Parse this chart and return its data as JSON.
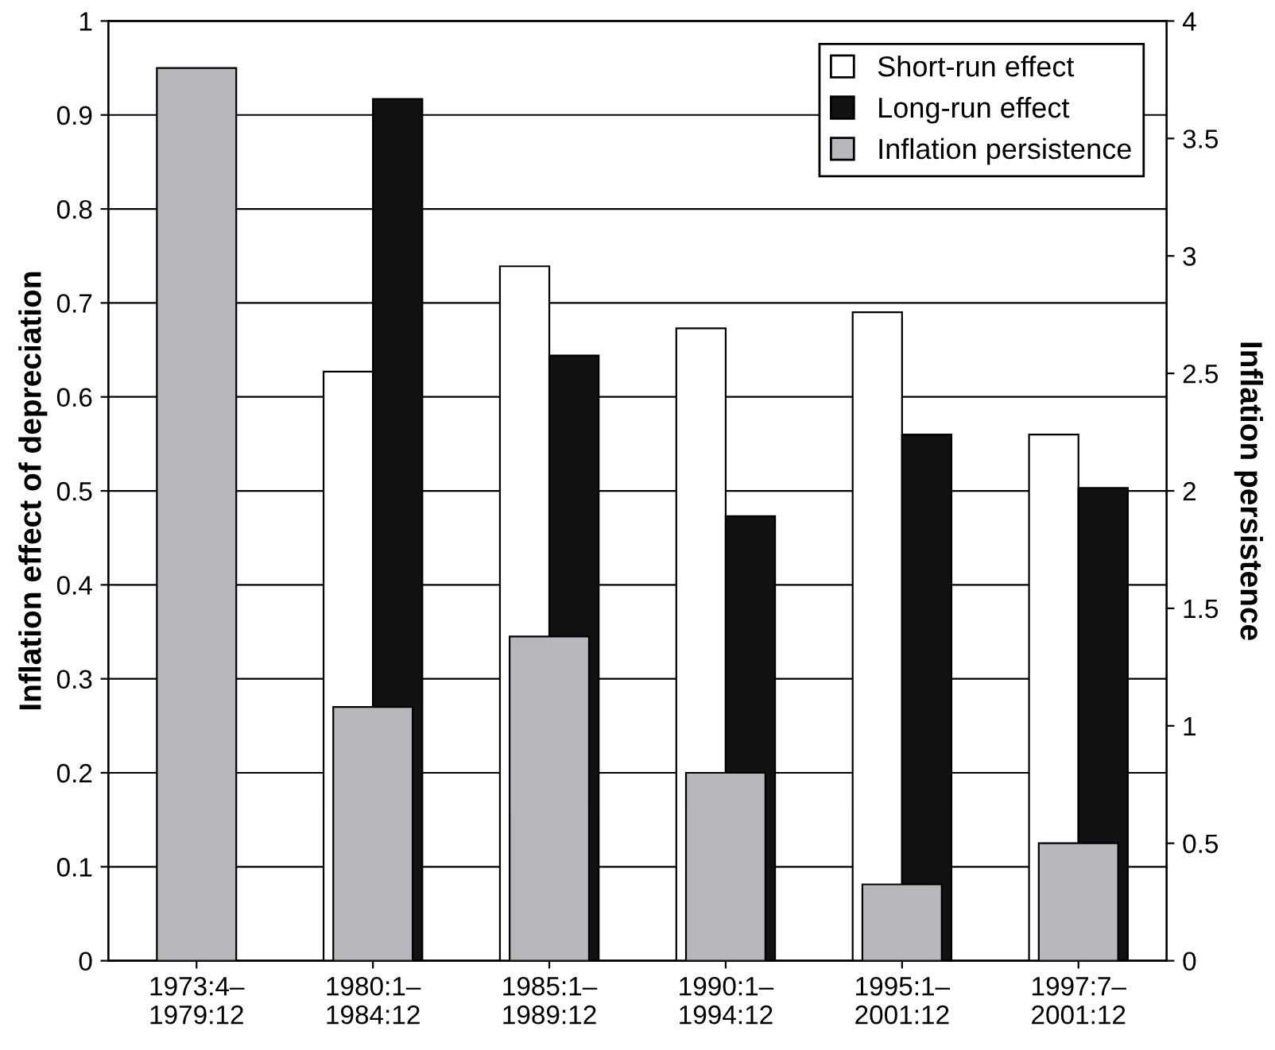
{
  "chart_data": {
    "type": "bar",
    "ylabel": "Inflation effect of depreciation",
    "y2label": "Inflation persistence",
    "categories": [
      "1973:4–\n1979:12",
      "1980:1–\n1984:12",
      "1985:1–\n1989:12",
      "1990:1–\n1994:12",
      "1995:1–\n2001:12",
      "1997:7–\n2001:12"
    ],
    "series": [
      {
        "name": "Short-run effect",
        "color": "#ffffff",
        "values": [
          null,
          0.627,
          0.739,
          0.673,
          0.69,
          0.56
        ]
      },
      {
        "name": "Long-run effect",
        "color": "#111111",
        "values": [
          null,
          0.917,
          0.644,
          0.473,
          0.56,
          0.503
        ]
      },
      {
        "name": "Inflation persistence",
        "color": "#b8b8bc",
        "axis": "y2",
        "values": [
          3.8,
          1.08,
          1.38,
          0.8,
          0.325,
          0.5
        ]
      }
    ],
    "ylim": [
      0,
      1
    ],
    "yticks": [
      0,
      0.1,
      0.2,
      0.3,
      0.4,
      0.5,
      0.6,
      0.7,
      0.8,
      0.9,
      1
    ],
    "y2lim": [
      0,
      4
    ],
    "y2ticks": [
      0,
      0.5,
      1,
      1.5,
      2,
      2.5,
      3,
      3.5,
      4
    ],
    "grid": "y",
    "legend": "top right"
  }
}
